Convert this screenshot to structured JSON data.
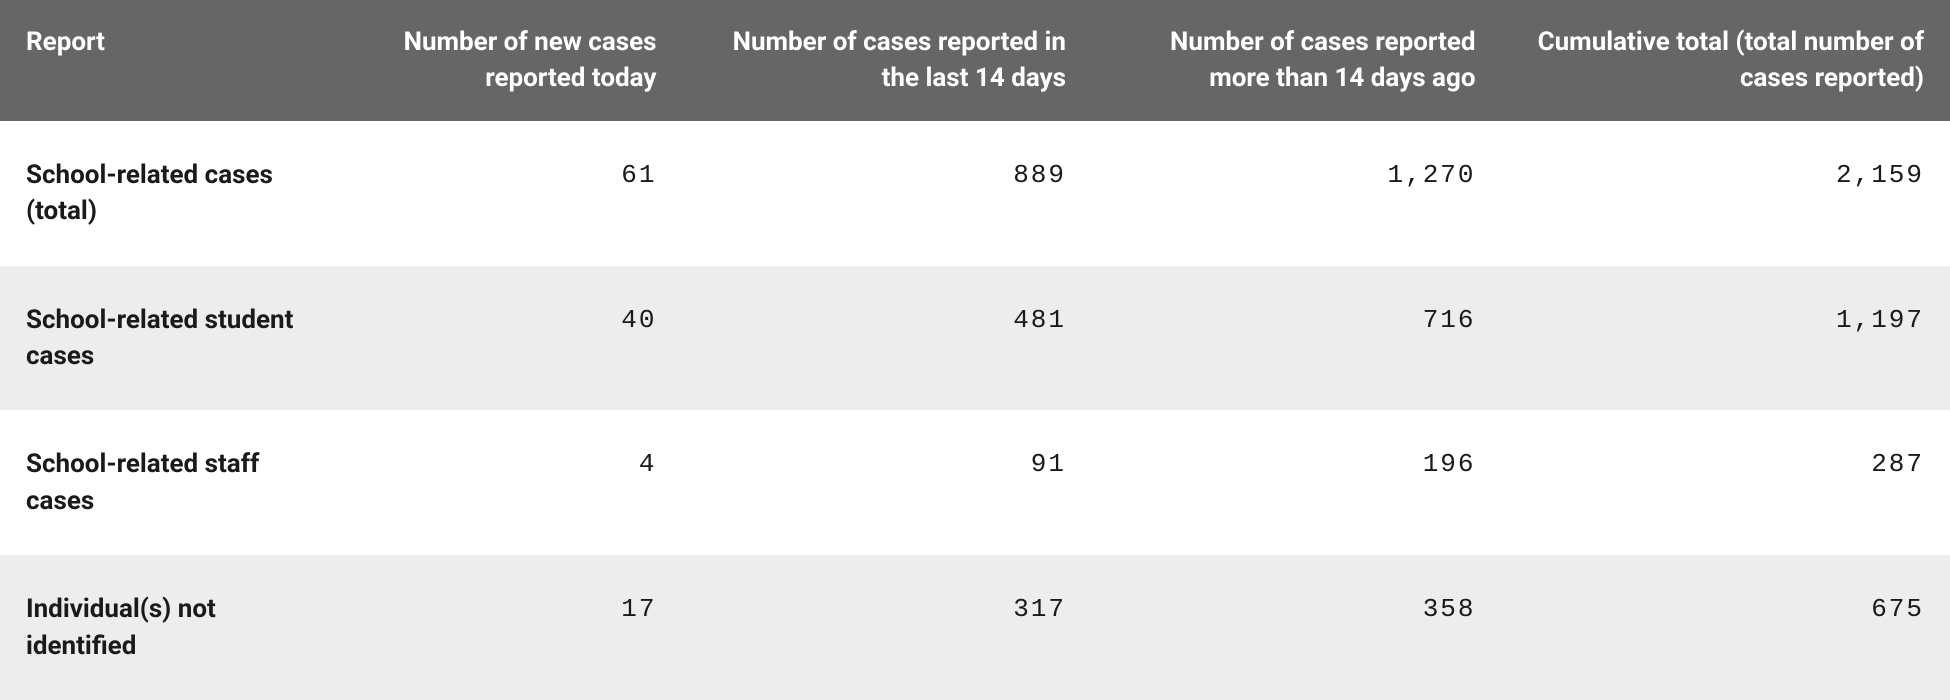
{
  "table": {
    "type": "table",
    "background_color": "#ffffff",
    "stripe_color": "#ededed",
    "header_bg": "#666666",
    "header_text_color": "#ffffff",
    "body_text_color": "#1a1a1a",
    "header_fontsize": 26,
    "body_fontsize": 26,
    "label_font_weight": 700,
    "value_font_family": "Courier New",
    "column_widths_pct": [
      18,
      17,
      21,
      21,
      23
    ],
    "column_align": [
      "left",
      "right",
      "right",
      "right",
      "right"
    ],
    "columns": [
      "Report",
      "Number of new cases reported today",
      "Number of cases reported in the last 14 days",
      "Number of cases reported more than 14 days ago",
      "Cumulative total (total number of cases reported)"
    ],
    "rows": [
      {
        "label": "School-related cases (total)",
        "values": [
          "61",
          "889",
          "1,270",
          "2,159"
        ],
        "striped": false
      },
      {
        "label": "School-related student cases",
        "values": [
          "40",
          "481",
          "716",
          "1,197"
        ],
        "striped": true
      },
      {
        "label": "School-related staff cases",
        "values": [
          "4",
          "91",
          "196",
          "287"
        ],
        "striped": false
      },
      {
        "label": "Individual(s) not identified",
        "values": [
          "17",
          "317",
          "358",
          "675"
        ],
        "striped": true
      }
    ]
  }
}
